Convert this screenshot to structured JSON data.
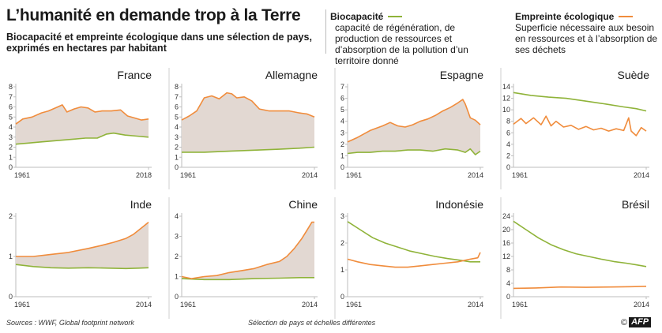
{
  "title": "L’humanité en demande trop à la Terre",
  "subtitle": "Biocapacité et empreinte écologique dans une sélection de pays, exprimés en hectares par habitant",
  "legend": {
    "biocapacity": {
      "label": "Biocapacité",
      "description": "capacité de régénération, de production de ressources et d’absorption de la pollution d’un territoire donné",
      "color": "#8fb339"
    },
    "footprint": {
      "label": "Empreinte écologique",
      "description": "Superficie nécessaire aux besoin en ressources et à l’absorption de ses déchets",
      "color": "#f08c3c"
    }
  },
  "footer": {
    "source": "Sources : WWF, Global footprint network",
    "note": "Sélection de pays et échelles différentes",
    "logo": "AFP"
  },
  "chart_data": [
    {
      "type": "line",
      "title": "France",
      "xlim": [
        1961,
        2018
      ],
      "x_ticks": [
        "1961",
        "2018"
      ],
      "ylim": [
        0,
        8
      ],
      "y_ticks": [
        0,
        1,
        2,
        3,
        4,
        5,
        6,
        7,
        8
      ],
      "shaded_between_series": true,
      "series": [
        {
          "name": "Biocapacité",
          "points": [
            [
              1961,
              2.3
            ],
            [
              1966,
              2.4
            ],
            [
              1971,
              2.5
            ],
            [
              1976,
              2.6
            ],
            [
              1981,
              2.7
            ],
            [
              1986,
              2.8
            ],
            [
              1991,
              2.9
            ],
            [
              1996,
              2.9
            ],
            [
              2000,
              3.3
            ],
            [
              2003,
              3.4
            ],
            [
              2008,
              3.2
            ],
            [
              2013,
              3.1
            ],
            [
              2018,
              3.0
            ]
          ]
        },
        {
          "name": "Empreinte écologique",
          "points": [
            [
              1961,
              4.3
            ],
            [
              1964,
              4.8
            ],
            [
              1968,
              5.0
            ],
            [
              1972,
              5.4
            ],
            [
              1975,
              5.6
            ],
            [
              1979,
              6.0
            ],
            [
              1981,
              6.2
            ],
            [
              1983,
              5.5
            ],
            [
              1986,
              5.8
            ],
            [
              1989,
              6.0
            ],
            [
              1992,
              5.9
            ],
            [
              1995,
              5.5
            ],
            [
              1998,
              5.6
            ],
            [
              2002,
              5.6
            ],
            [
              2006,
              5.7
            ],
            [
              2009,
              5.1
            ],
            [
              2012,
              4.9
            ],
            [
              2015,
              4.7
            ],
            [
              2018,
              4.8
            ]
          ]
        }
      ]
    },
    {
      "type": "line",
      "title": "Allemagne",
      "xlim": [
        1961,
        2014
      ],
      "x_ticks": [
        "1961",
        "2014"
      ],
      "ylim": [
        0,
        8
      ],
      "y_ticks": [
        0,
        1,
        2,
        3,
        4,
        5,
        6,
        7,
        8
      ],
      "shaded_between_series": true,
      "series": [
        {
          "name": "Biocapacité",
          "points": [
            [
              1961,
              1.5
            ],
            [
              1970,
              1.5
            ],
            [
              1980,
              1.6
            ],
            [
              1990,
              1.7
            ],
            [
              2000,
              1.8
            ],
            [
              2008,
              1.9
            ],
            [
              2014,
              2.0
            ]
          ]
        },
        {
          "name": "Empreinte écologique",
          "points": [
            [
              1961,
              4.7
            ],
            [
              1964,
              5.1
            ],
            [
              1967,
              5.6
            ],
            [
              1970,
              6.9
            ],
            [
              1973,
              7.1
            ],
            [
              1976,
              6.8
            ],
            [
              1979,
              7.4
            ],
            [
              1981,
              7.3
            ],
            [
              1983,
              6.9
            ],
            [
              1986,
              7.0
            ],
            [
              1989,
              6.6
            ],
            [
              1992,
              5.8
            ],
            [
              1996,
              5.6
            ],
            [
              2000,
              5.6
            ],
            [
              2004,
              5.6
            ],
            [
              2008,
              5.4
            ],
            [
              2011,
              5.3
            ],
            [
              2014,
              5.0
            ]
          ]
        }
      ]
    },
    {
      "type": "line",
      "title": "Espagne",
      "xlim": [
        1961,
        2014
      ],
      "x_ticks": [
        "1961",
        "2014"
      ],
      "ylim": [
        0,
        7
      ],
      "y_ticks": [
        0,
        1,
        2,
        3,
        4,
        5,
        6,
        7
      ],
      "shaded_between_series": true,
      "series": [
        {
          "name": "Biocapacité",
          "points": [
            [
              1961,
              1.2
            ],
            [
              1965,
              1.3
            ],
            [
              1970,
              1.3
            ],
            [
              1975,
              1.4
            ],
            [
              1980,
              1.4
            ],
            [
              1985,
              1.5
            ],
            [
              1990,
              1.5
            ],
            [
              1995,
              1.4
            ],
            [
              2000,
              1.6
            ],
            [
              2005,
              1.5
            ],
            [
              2008,
              1.3
            ],
            [
              2010,
              1.6
            ],
            [
              2012,
              1.1
            ],
            [
              2014,
              1.4
            ]
          ]
        },
        {
          "name": "Empreinte écologique",
          "points": [
            [
              1961,
              2.2
            ],
            [
              1965,
              2.6
            ],
            [
              1970,
              3.2
            ],
            [
              1975,
              3.6
            ],
            [
              1978,
              3.9
            ],
            [
              1981,
              3.6
            ],
            [
              1984,
              3.5
            ],
            [
              1987,
              3.7
            ],
            [
              1990,
              4.0
            ],
            [
              1993,
              4.2
            ],
            [
              1996,
              4.5
            ],
            [
              1999,
              4.9
            ],
            [
              2002,
              5.2
            ],
            [
              2005,
              5.6
            ],
            [
              2007,
              5.9
            ],
            [
              2008,
              5.5
            ],
            [
              2010,
              4.3
            ],
            [
              2012,
              4.1
            ],
            [
              2014,
              3.7
            ]
          ]
        }
      ]
    },
    {
      "type": "line",
      "title": "Suède",
      "xlim": [
        1961,
        2014
      ],
      "x_ticks": [
        "1961",
        "2014"
      ],
      "ylim": [
        0,
        14
      ],
      "y_ticks": [
        0,
        2,
        4,
        6,
        8,
        10,
        12,
        14
      ],
      "shaded_between_series": false,
      "series": [
        {
          "name": "Biocapacité",
          "points": [
            [
              1961,
              13.0
            ],
            [
              1968,
              12.5
            ],
            [
              1975,
              12.2
            ],
            [
              1982,
              12.0
            ],
            [
              1990,
              11.5
            ],
            [
              1998,
              11.0
            ],
            [
              2005,
              10.5
            ],
            [
              2010,
              10.2
            ],
            [
              2014,
              9.8
            ]
          ]
        },
        {
          "name": "Empreinte écologique",
          "points": [
            [
              1961,
              7.5
            ],
            [
              1964,
              8.5
            ],
            [
              1966,
              7.6
            ],
            [
              1969,
              8.6
            ],
            [
              1972,
              7.4
            ],
            [
              1974,
              8.9
            ],
            [
              1976,
              7.2
            ],
            [
              1978,
              8.0
            ],
            [
              1981,
              7.0
            ],
            [
              1984,
              7.3
            ],
            [
              1987,
              6.6
            ],
            [
              1990,
              7.1
            ],
            [
              1993,
              6.5
            ],
            [
              1996,
              6.8
            ],
            [
              1999,
              6.3
            ],
            [
              2002,
              6.7
            ],
            [
              2005,
              6.4
            ],
            [
              2007,
              8.6
            ],
            [
              2008,
              6.3
            ],
            [
              2010,
              5.5
            ],
            [
              2012,
              6.9
            ],
            [
              2014,
              6.3
            ]
          ]
        }
      ]
    },
    {
      "type": "line",
      "title": "Inde",
      "xlim": [
        1961,
        2014
      ],
      "x_ticks": [
        "1961",
        "2014"
      ],
      "ylim": [
        0,
        2
      ],
      "y_ticks": [
        0,
        1,
        2
      ],
      "shaded_between_series": true,
      "series": [
        {
          "name": "Biocapacité",
          "points": [
            [
              1961,
              0.8
            ],
            [
              1968,
              0.75
            ],
            [
              1975,
              0.72
            ],
            [
              1982,
              0.71
            ],
            [
              1990,
              0.72
            ],
            [
              1998,
              0.71
            ],
            [
              2005,
              0.7
            ],
            [
              2010,
              0.71
            ],
            [
              2014,
              0.72
            ]
          ]
        },
        {
          "name": "Empreinte écologique",
          "points": [
            [
              1961,
              1.0
            ],
            [
              1968,
              1.0
            ],
            [
              1975,
              1.05
            ],
            [
              1982,
              1.1
            ],
            [
              1990,
              1.2
            ],
            [
              1995,
              1.27
            ],
            [
              2000,
              1.35
            ],
            [
              2005,
              1.45
            ],
            [
              2008,
              1.55
            ],
            [
              2010,
              1.65
            ],
            [
              2012,
              1.75
            ],
            [
              2014,
              1.85
            ]
          ]
        }
      ]
    },
    {
      "type": "line",
      "title": "Chine",
      "xlim": [
        1961,
        2014
      ],
      "x_ticks": [
        "1961",
        "2014"
      ],
      "ylim": [
        0,
        4
      ],
      "y_ticks": [
        0,
        1,
        2,
        3,
        4
      ],
      "shaded_between_series": true,
      "series": [
        {
          "name": "Biocapacité",
          "points": [
            [
              1961,
              0.9
            ],
            [
              1970,
              0.85
            ],
            [
              1980,
              0.85
            ],
            [
              1990,
              0.9
            ],
            [
              2000,
              0.92
            ],
            [
              2008,
              0.95
            ],
            [
              2014,
              0.95
            ]
          ]
        },
        {
          "name": "Empreinte écologique",
          "points": [
            [
              1961,
              1.0
            ],
            [
              1965,
              0.9
            ],
            [
              1970,
              1.0
            ],
            [
              1975,
              1.05
            ],
            [
              1980,
              1.2
            ],
            [
              1985,
              1.3
            ],
            [
              1990,
              1.4
            ],
            [
              1995,
              1.6
            ],
            [
              2000,
              1.75
            ],
            [
              2003,
              2.0
            ],
            [
              2006,
              2.4
            ],
            [
              2009,
              2.9
            ],
            [
              2011,
              3.3
            ],
            [
              2013,
              3.7
            ],
            [
              2014,
              3.7
            ]
          ]
        }
      ]
    },
    {
      "type": "line",
      "title": "Indonésie",
      "xlim": [
        1961,
        2014
      ],
      "x_ticks": [
        "1961",
        "2014"
      ],
      "ylim": [
        0,
        3
      ],
      "y_ticks": [
        0,
        1,
        2,
        3
      ],
      "shaded_between_series": false,
      "series": [
        {
          "name": "Biocapacité",
          "points": [
            [
              1961,
              2.8
            ],
            [
              1966,
              2.5
            ],
            [
              1971,
              2.2
            ],
            [
              1976,
              2.0
            ],
            [
              1981,
              1.85
            ],
            [
              1986,
              1.7
            ],
            [
              1991,
              1.6
            ],
            [
              1996,
              1.5
            ],
            [
              2001,
              1.42
            ],
            [
              2006,
              1.36
            ],
            [
              2010,
              1.3
            ],
            [
              2014,
              1.3
            ]
          ]
        },
        {
          "name": "Empreinte écologique",
          "points": [
            [
              1961,
              1.4
            ],
            [
              1965,
              1.3
            ],
            [
              1970,
              1.2
            ],
            [
              1975,
              1.15
            ],
            [
              1980,
              1.1
            ],
            [
              1985,
              1.1
            ],
            [
              1990,
              1.15
            ],
            [
              1995,
              1.2
            ],
            [
              2000,
              1.25
            ],
            [
              2005,
              1.3
            ],
            [
              2010,
              1.4
            ],
            [
              2013,
              1.45
            ],
            [
              2014,
              1.65
            ]
          ]
        }
      ]
    },
    {
      "type": "line",
      "title": "Brésil",
      "xlim": [
        1961,
        2014
      ],
      "x_ticks": [
        "1961",
        "2014"
      ],
      "ylim": [
        0,
        24
      ],
      "y_ticks": [
        0,
        4,
        8,
        12,
        16,
        20,
        24
      ],
      "shaded_between_series": false,
      "series": [
        {
          "name": "Biocapacité",
          "points": [
            [
              1961,
              22.5
            ],
            [
              1966,
              20.0
            ],
            [
              1971,
              17.5
            ],
            [
              1976,
              15.5
            ],
            [
              1981,
              14.0
            ],
            [
              1986,
              12.8
            ],
            [
              1991,
              12.0
            ],
            [
              1996,
              11.2
            ],
            [
              2001,
              10.5
            ],
            [
              2006,
              10.0
            ],
            [
              2010,
              9.5
            ],
            [
              2014,
              9.0
            ]
          ]
        },
        {
          "name": "Empreinte écologique",
          "points": [
            [
              1961,
              2.5
            ],
            [
              1970,
              2.6
            ],
            [
              1980,
              2.9
            ],
            [
              1990,
              2.8
            ],
            [
              2000,
              2.9
            ],
            [
              2008,
              3.0
            ],
            [
              2014,
              3.1
            ]
          ]
        }
      ]
    }
  ]
}
